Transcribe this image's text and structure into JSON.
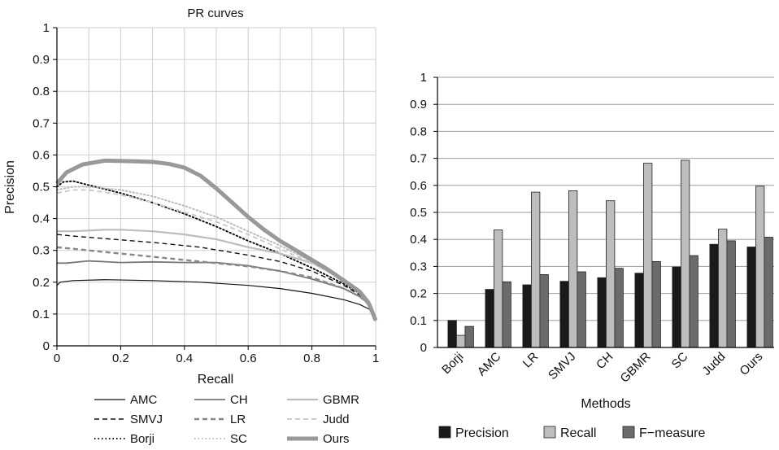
{
  "charts": {
    "left": {
      "type": "line",
      "title": "PR curves",
      "xlabel": "Recall",
      "ylabel": "Precision",
      "xlim": [
        0,
        1
      ],
      "ylim": [
        0,
        1
      ],
      "grid": true,
      "legend_position": "bottom",
      "xticks": [
        "0",
        "0.2",
        "0.4",
        "0.6",
        "0.8",
        "1"
      ],
      "yticks": [
        "0",
        "0.1",
        "0.2",
        "0.3",
        "0.4",
        "0.5",
        "0.6",
        "0.7",
        "0.8",
        "0.9",
        "1"
      ]
    },
    "right": {
      "type": "bar",
      "xlabel": "Methods",
      "ylim": [
        0,
        1
      ],
      "grid": true,
      "legend_position": "bottom",
      "yticks": [
        "0",
        "0.1",
        "0.2",
        "0.3",
        "0.4",
        "0.5",
        "0.6",
        "0.7",
        "0.8",
        "0.9",
        "1"
      ]
    }
  },
  "chart_data": [
    {
      "type": "line",
      "title": "PR curves",
      "xlabel": "Recall",
      "ylabel": "Precision",
      "xlim": [
        0,
        1
      ],
      "ylim": [
        0,
        1
      ],
      "grid": true,
      "legend": "bottom",
      "series": [
        {
          "name": "AMC",
          "style": "solid",
          "color": "#111111",
          "width": 1.2,
          "points": [
            [
              0,
              0.19
            ],
            [
              0.01,
              0.2
            ],
            [
              0.05,
              0.205
            ],
            [
              0.15,
              0.208
            ],
            [
              0.3,
              0.205
            ],
            [
              0.45,
              0.2
            ],
            [
              0.6,
              0.19
            ],
            [
              0.7,
              0.18
            ],
            [
              0.8,
              0.165
            ],
            [
              0.9,
              0.145
            ],
            [
              0.95,
              0.13
            ],
            [
              0.98,
              0.115
            ],
            [
              1,
              0.08
            ]
          ]
        },
        {
          "name": "SMVJ",
          "style": "dashed",
          "color": "#111111",
          "width": 1.4,
          "points": [
            [
              0,
              0.35
            ],
            [
              0.05,
              0.345
            ],
            [
              0.15,
              0.337
            ],
            [
              0.3,
              0.325
            ],
            [
              0.45,
              0.31
            ],
            [
              0.6,
              0.285
            ],
            [
              0.7,
              0.265
            ],
            [
              0.8,
              0.235
            ],
            [
              0.9,
              0.19
            ],
            [
              0.95,
              0.16
            ],
            [
              0.98,
              0.13
            ],
            [
              1,
              0.08
            ]
          ]
        },
        {
          "name": "Borji",
          "style": "dotted",
          "color": "#111111",
          "width": 2.0,
          "points": [
            [
              0,
              0.5
            ],
            [
              0.02,
              0.515
            ],
            [
              0.05,
              0.518
            ],
            [
              0.1,
              0.505
            ],
            [
              0.2,
              0.48
            ],
            [
              0.3,
              0.45
            ],
            [
              0.4,
              0.415
            ],
            [
              0.5,
              0.375
            ],
            [
              0.6,
              0.33
            ],
            [
              0.7,
              0.29
            ],
            [
              0.8,
              0.245
            ],
            [
              0.9,
              0.195
            ],
            [
              0.95,
              0.165
            ],
            [
              0.98,
              0.135
            ],
            [
              1,
              0.08
            ]
          ]
        },
        {
          "name": "CH",
          "style": "solid",
          "color": "#777777",
          "width": 1.8,
          "points": [
            [
              0,
              0.26
            ],
            [
              0.03,
              0.26
            ],
            [
              0.1,
              0.267
            ],
            [
              0.2,
              0.262
            ],
            [
              0.3,
              0.264
            ],
            [
              0.4,
              0.262
            ],
            [
              0.5,
              0.262
            ],
            [
              0.6,
              0.252
            ],
            [
              0.7,
              0.235
            ],
            [
              0.8,
              0.21
            ],
            [
              0.9,
              0.18
            ],
            [
              0.95,
              0.155
            ],
            [
              0.98,
              0.13
            ],
            [
              1,
              0.08
            ]
          ]
        },
        {
          "name": "LR",
          "style": "dashed",
          "color": "#888888",
          "width": 2.4,
          "points": [
            [
              0,
              0.31
            ],
            [
              0.05,
              0.305
            ],
            [
              0.15,
              0.295
            ],
            [
              0.3,
              0.28
            ],
            [
              0.45,
              0.265
            ],
            [
              0.6,
              0.25
            ],
            [
              0.7,
              0.235
            ],
            [
              0.8,
              0.215
            ],
            [
              0.9,
              0.18
            ],
            [
              0.95,
              0.155
            ],
            [
              0.98,
              0.13
            ],
            [
              1,
              0.08
            ]
          ]
        },
        {
          "name": "SC",
          "style": "dotted",
          "color": "#bbbbbb",
          "width": 2.0,
          "points": [
            [
              0,
              0.49
            ],
            [
              0.05,
              0.5
            ],
            [
              0.1,
              0.5
            ],
            [
              0.2,
              0.49
            ],
            [
              0.3,
              0.47
            ],
            [
              0.4,
              0.44
            ],
            [
              0.5,
              0.405
            ],
            [
              0.6,
              0.36
            ],
            [
              0.7,
              0.315
            ],
            [
              0.8,
              0.265
            ],
            [
              0.9,
              0.205
            ],
            [
              0.95,
              0.17
            ],
            [
              0.98,
              0.135
            ],
            [
              1,
              0.08
            ]
          ]
        },
        {
          "name": "GBMR",
          "style": "solid",
          "color": "#bdbdbd",
          "width": 2.2,
          "points": [
            [
              0,
              0.36
            ],
            [
              0.05,
              0.36
            ],
            [
              0.15,
              0.365
            ],
            [
              0.2,
              0.365
            ],
            [
              0.3,
              0.36
            ],
            [
              0.4,
              0.35
            ],
            [
              0.5,
              0.335
            ],
            [
              0.6,
              0.31
            ],
            [
              0.7,
              0.29
            ],
            [
              0.8,
              0.26
            ],
            [
              0.9,
              0.21
            ],
            [
              0.95,
              0.175
            ],
            [
              0.98,
              0.14
            ],
            [
              1,
              0.08
            ]
          ]
        },
        {
          "name": "Judd",
          "style": "dashed",
          "color": "#cccccc",
          "width": 2.0,
          "points": [
            [
              0,
              0.48
            ],
            [
              0.05,
              0.49
            ],
            [
              0.1,
              0.49
            ],
            [
              0.2,
              0.475
            ],
            [
              0.3,
              0.45
            ],
            [
              0.4,
              0.42
            ],
            [
              0.5,
              0.39
            ],
            [
              0.6,
              0.35
            ],
            [
              0.7,
              0.305
            ],
            [
              0.8,
              0.26
            ],
            [
              0.9,
              0.205
            ],
            [
              0.95,
              0.17
            ],
            [
              0.98,
              0.135
            ],
            [
              1,
              0.08
            ]
          ]
        },
        {
          "name": "Ours",
          "style": "solid",
          "color": "#999999",
          "width": 5.0,
          "points": [
            [
              0,
              0.51
            ],
            [
              0.03,
              0.545
            ],
            [
              0.08,
              0.57
            ],
            [
              0.15,
              0.582
            ],
            [
              0.25,
              0.58
            ],
            [
              0.3,
              0.578
            ],
            [
              0.35,
              0.572
            ],
            [
              0.4,
              0.56
            ],
            [
              0.45,
              0.535
            ],
            [
              0.5,
              0.495
            ],
            [
              0.55,
              0.45
            ],
            [
              0.6,
              0.405
            ],
            [
              0.65,
              0.365
            ],
            [
              0.7,
              0.33
            ],
            [
              0.75,
              0.3
            ],
            [
              0.8,
              0.27
            ],
            [
              0.85,
              0.24
            ],
            [
              0.9,
              0.205
            ],
            [
              0.95,
              0.17
            ],
            [
              0.98,
              0.13
            ],
            [
              1,
              0.08
            ]
          ]
        }
      ]
    },
    {
      "type": "bar",
      "xlabel": "Methods",
      "ylim": [
        0,
        1
      ],
      "grid": true,
      "legend": "bottom",
      "categories": [
        "Borji",
        "AMC",
        "LR",
        "SMVJ",
        "CH",
        "GBMR",
        "SC",
        "Judd",
        "Ours"
      ],
      "series": [
        {
          "name": "Precision",
          "color": "#1a1a1a",
          "values": [
            0.1,
            0.215,
            0.232,
            0.245,
            0.258,
            0.275,
            0.298,
            0.382,
            0.372
          ]
        },
        {
          "name": "Recall",
          "color": "#bdbdbd",
          "values": [
            0.045,
            0.435,
            0.575,
            0.58,
            0.543,
            0.682,
            0.693,
            0.438,
            0.597
          ]
        },
        {
          "name": "F−measure",
          "color": "#6b6b6b",
          "values": [
            0.078,
            0.243,
            0.27,
            0.28,
            0.293,
            0.318,
            0.34,
            0.395,
            0.408
          ]
        }
      ]
    }
  ]
}
